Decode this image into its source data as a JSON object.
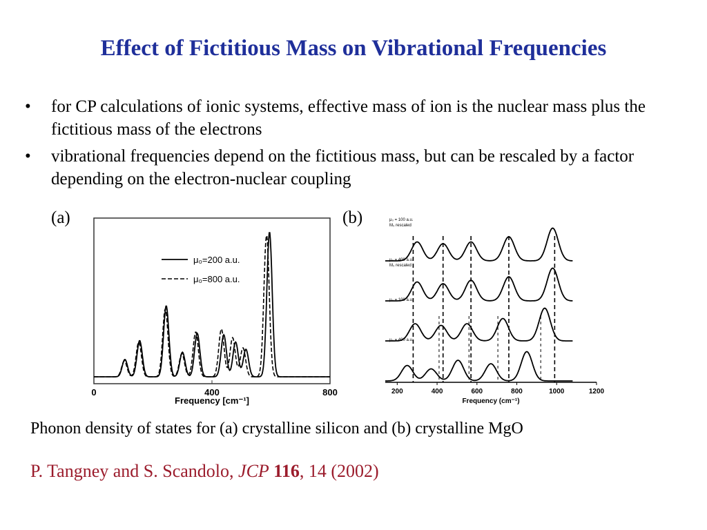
{
  "slide": {
    "title": "Effect of Fictitious Mass on Vibrational Frequencies",
    "bullets": [
      "for CP calculations of ionic systems, effective mass of ion is the nuclear mass plus the fictitious mass of the electrons",
      "vibrational frequencies depend on the fictitious mass, but can be rescaled by a factor depending on the electron-nuclear coupling"
    ],
    "label_a": "(a)",
    "label_b": "(b)",
    "caption": "Phonon density of states for (a) crystalline silicon and (b) crystalline MgO",
    "citation": {
      "authors": "P. Tangney and S. Scandolo, ",
      "journal": "JCP",
      "volume": "116",
      "rest": ", 14 (2002)"
    }
  },
  "chart_data": [
    {
      "type": "line",
      "xlabel": "Frequency [cm⁻¹]",
      "ylabel": "",
      "xlim": [
        0,
        800
      ],
      "xticks": [
        0,
        400,
        800
      ],
      "legend": "top-center",
      "series": [
        {
          "name": "μ₀=200 a.u.",
          "style": "solid",
          "peaks": [
            {
              "x": 105,
              "h": 0.12
            },
            {
              "x": 155,
              "h": 0.25
            },
            {
              "x": 245,
              "h": 0.49
            },
            {
              "x": 300,
              "h": 0.17
            },
            {
              "x": 350,
              "h": 0.3
            },
            {
              "x": 440,
              "h": 0.29
            },
            {
              "x": 480,
              "h": 0.24
            },
            {
              "x": 515,
              "h": 0.19
            },
            {
              "x": 595,
              "h": 1.0
            }
          ]
        },
        {
          "name": "μ₀=800 a.u.",
          "style": "dashed",
          "peaks": [
            {
              "x": 103,
              "h": 0.11
            },
            {
              "x": 152,
              "h": 0.24
            },
            {
              "x": 242,
              "h": 0.47
            },
            {
              "x": 298,
              "h": 0.16
            },
            {
              "x": 345,
              "h": 0.31
            },
            {
              "x": 432,
              "h": 0.33
            },
            {
              "x": 470,
              "h": 0.27
            },
            {
              "x": 505,
              "h": 0.2
            },
            {
              "x": 585,
              "h": 0.98
            }
          ]
        }
      ]
    },
    {
      "type": "line",
      "xlabel": "Frequency (cm⁻¹)",
      "ylabel": "",
      "xlim": [
        140,
        1200
      ],
      "xticks": [
        200,
        400,
        600,
        800,
        1000,
        1200
      ],
      "series": [
        {
          "name": "μ₀ = 100 a.u.",
          "name_line2": "M₀ rescaled",
          "peaks": [
            {
              "x": 300,
              "h": 0.55
            },
            {
              "x": 430,
              "h": 0.5
            },
            {
              "x": 570,
              "h": 0.55
            },
            {
              "x": 760,
              "h": 0.7
            },
            {
              "x": 980,
              "h": 0.95
            }
          ]
        },
        {
          "name": "μ₀ = 400 a.u.",
          "name_line2": "M₀ rescaled",
          "peaks": [
            {
              "x": 300,
              "h": 0.55
            },
            {
              "x": 430,
              "h": 0.5
            },
            {
              "x": 570,
              "h": 0.6
            },
            {
              "x": 760,
              "h": 0.7
            },
            {
              "x": 980,
              "h": 0.95
            }
          ]
        },
        {
          "name": "μ₀ = 100 a.u.",
          "peaks": [
            {
              "x": 290,
              "h": 0.5
            },
            {
              "x": 420,
              "h": 0.45
            },
            {
              "x": 550,
              "h": 0.5
            },
            {
              "x": 730,
              "h": 0.65
            },
            {
              "x": 940,
              "h": 0.95
            }
          ]
        },
        {
          "name": "μ₀ = 400 a.u.",
          "peaks": [
            {
              "x": 250,
              "h": 0.45
            },
            {
              "x": 370,
              "h": 0.35
            },
            {
              "x": 505,
              "h": 0.6
            },
            {
              "x": 670,
              "h": 0.5
            },
            {
              "x": 850,
              "h": 0.85
            }
          ]
        }
      ],
      "reference_lines": [
        280,
        430,
        570,
        760,
        990
      ],
      "shifted_lines": [
        410,
        560,
        705,
        920
      ]
    }
  ]
}
